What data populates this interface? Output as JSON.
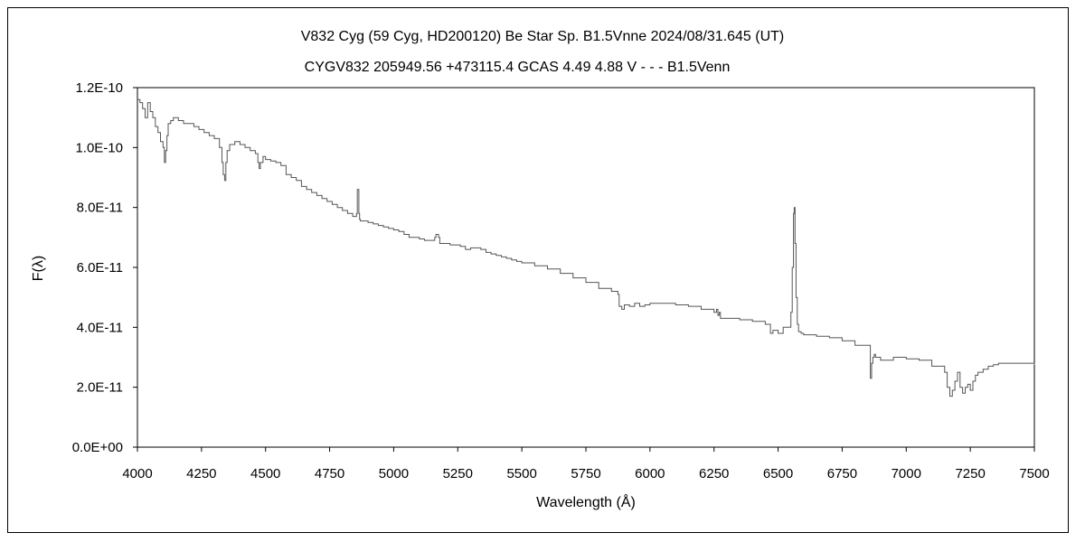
{
  "chart_data": {
    "type": "line",
    "title": "V832 Cyg (59 Cyg, HD200120)    Be Star    Sp. B1.5Vnne     2024/08/31.645 (UT)",
    "subtitle": "CYGV832 205949.56 +473115.4 GCAS 4.49 4.88 V - - - B1.5Venn",
    "xlabel": "Wavelength (Å)",
    "ylabel": "F(λ)",
    "xlim": [
      4000,
      7500
    ],
    "ylim": [
      0,
      1.2e-10
    ],
    "x_ticks": [
      4000,
      4250,
      4500,
      4750,
      5000,
      5250,
      5500,
      5750,
      6000,
      6250,
      6500,
      6750,
      7000,
      7250,
      7500
    ],
    "y_ticks": [
      0,
      2e-11,
      4e-11,
      6e-11,
      8e-11,
      1e-10,
      1.2e-10
    ],
    "y_tick_labels": [
      "0.0E+00",
      "2.0E-11",
      "4.0E-11",
      "6.0E-11",
      "8.0E-11",
      "1.0E-10",
      "1.2E-10"
    ],
    "grid": false,
    "line_color": "#555555",
    "series": [
      {
        "x": [
          4000,
          4010,
          4020,
          4030,
          4040,
          4050,
          4060,
          4070,
          4080,
          4090,
          4100,
          4105,
          4110,
          4115,
          4120,
          4130,
          4140,
          4160,
          4180,
          4200,
          4220,
          4240,
          4260,
          4280,
          4300,
          4320,
          4330,
          4335,
          4340,
          4345,
          4350,
          4360,
          4380,
          4400,
          4420,
          4440,
          4460,
          4470,
          4475,
          4480,
          4490,
          4500,
          4520,
          4540,
          4560,
          4580,
          4600,
          4620,
          4640,
          4660,
          4680,
          4700,
          4720,
          4740,
          4760,
          4780,
          4800,
          4820,
          4840,
          4855,
          4858,
          4861,
          4864,
          4867,
          4870,
          4880,
          4900,
          4920,
          4940,
          4960,
          4980,
          5000,
          5020,
          5040,
          5060,
          5080,
          5100,
          5120,
          5140,
          5160,
          5165,
          5170,
          5175,
          5180,
          5200,
          5220,
          5240,
          5260,
          5280,
          5300,
          5320,
          5340,
          5360,
          5380,
          5400,
          5420,
          5440,
          5460,
          5480,
          5500,
          5550,
          5600,
          5650,
          5700,
          5750,
          5800,
          5850,
          5870,
          5875,
          5880,
          5890,
          5900,
          5920,
          5940,
          5960,
          5980,
          6000,
          6050,
          6100,
          6150,
          6200,
          6250,
          6260,
          6265,
          6270,
          6275,
          6280,
          6300,
          6350,
          6400,
          6450,
          6470,
          6480,
          6500,
          6520,
          6540,
          6550,
          6555,
          6560,
          6563,
          6566,
          6570,
          6575,
          6580,
          6590,
          6600,
          6650,
          6700,
          6750,
          6800,
          6850,
          6860,
          6865,
          6870,
          6875,
          6880,
          6900,
          6950,
          7000,
          7050,
          7100,
          7150,
          7160,
          7170,
          7180,
          7190,
          7200,
          7210,
          7220,
          7230,
          7240,
          7250,
          7260,
          7270,
          7280,
          7300,
          7320,
          7340,
          7360,
          7400,
          7450,
          7500
        ],
        "y": [
          1.16e-10,
          1.15e-10,
          1.13e-10,
          1.1e-10,
          1.15e-10,
          1.12e-10,
          1.1e-10,
          1.07e-10,
          1.05e-10,
          1.02e-10,
          1e-10,
          9.5e-11,
          9.9e-11,
          1.04e-10,
          1.08e-10,
          1.09e-10,
          1.1e-10,
          1.09e-10,
          1.08e-10,
          1.08e-10,
          1.07e-10,
          1.06e-10,
          1.05e-10,
          1.04e-10,
          1.03e-10,
          1e-10,
          9.5e-11,
          9.1e-11,
          8.9e-11,
          9.5e-11,
          9.9e-11,
          1.01e-10,
          1.02e-10,
          1.01e-10,
          1e-10,
          9.9e-11,
          9.8e-11,
          9.5e-11,
          9.3e-11,
          9.5e-11,
          9.7e-11,
          9.6e-11,
          9.55e-11,
          9.5e-11,
          9.4e-11,
          9.1e-11,
          9e-11,
          8.9e-11,
          8.7e-11,
          8.6e-11,
          8.5e-11,
          8.4e-11,
          8.3e-11,
          8.2e-11,
          8.1e-11,
          8e-11,
          7.9e-11,
          7.8e-11,
          7.7e-11,
          7.8e-11,
          8.6e-11,
          8.6e-11,
          7.8e-11,
          7.6e-11,
          7.55e-11,
          7.55e-11,
          7.5e-11,
          7.45e-11,
          7.4e-11,
          7.35e-11,
          7.3e-11,
          7.25e-11,
          7.2e-11,
          7.1e-11,
          7e-11,
          7e-11,
          6.95e-11,
          6.9e-11,
          6.9e-11,
          7e-11,
          7.1e-11,
          7.1e-11,
          7e-11,
          6.8e-11,
          6.8e-11,
          6.75e-11,
          6.75e-11,
          6.7e-11,
          6.6e-11,
          6.65e-11,
          6.65e-11,
          6.6e-11,
          6.5e-11,
          6.45e-11,
          6.4e-11,
          6.35e-11,
          6.3e-11,
          6.25e-11,
          6.2e-11,
          6.15e-11,
          6.05e-11,
          5.95e-11,
          5.8e-11,
          5.65e-11,
          5.5e-11,
          5.3e-11,
          5.2e-11,
          5.2e-11,
          5.1e-11,
          4.7e-11,
          4.6e-11,
          4.75e-11,
          4.7e-11,
          4.8e-11,
          4.7e-11,
          4.75e-11,
          4.8e-11,
          4.8e-11,
          4.75e-11,
          4.7e-11,
          4.6e-11,
          4.5e-11,
          4.6e-11,
          4.4e-11,
          4.5e-11,
          4.3e-11,
          4.3e-11,
          4.3e-11,
          4.25e-11,
          4.2e-11,
          4.1e-11,
          3.8e-11,
          3.9e-11,
          3.8e-11,
          4e-11,
          4e-11,
          4.5e-11,
          6e-11,
          7.8e-11,
          8e-11,
          6.8e-11,
          5e-11,
          4.1e-11,
          3.85e-11,
          3.8e-11,
          3.75e-11,
          3.7e-11,
          3.65e-11,
          3.55e-11,
          3.4e-11,
          3.4e-11,
          2.3e-11,
          2.8e-11,
          3e-11,
          3.1e-11,
          3e-11,
          2.9e-11,
          3e-11,
          2.95e-11,
          2.9e-11,
          2.7e-11,
          2.5e-11,
          2e-11,
          1.7e-11,
          1.9e-11,
          2.2e-11,
          2.5e-11,
          2e-11,
          1.8e-11,
          2e-11,
          2.1e-11,
          1.9e-11,
          2.2e-11,
          2.4e-11,
          2.5e-11,
          2.6e-11,
          2.7e-11,
          2.75e-11,
          2.8e-11,
          2.8e-11,
          2.8e-11,
          2.75e-11
        ]
      }
    ]
  }
}
